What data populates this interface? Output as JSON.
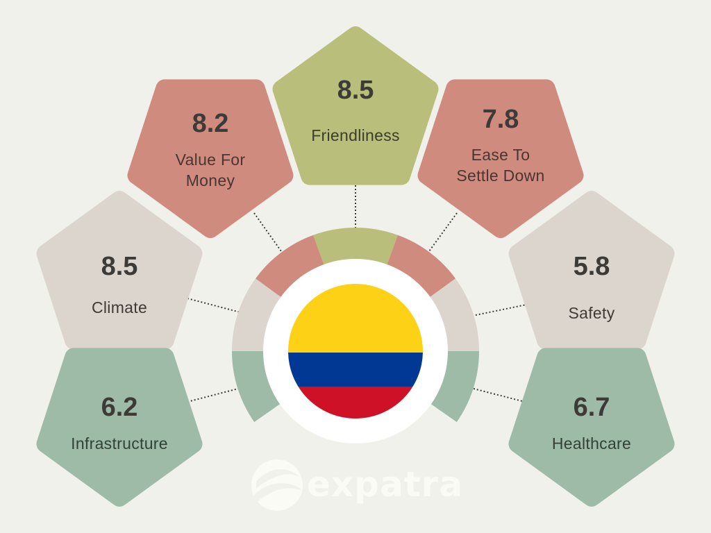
{
  "infographic": {
    "country_flag": "Colombia",
    "flag_colors": {
      "yellow": "#fcd116",
      "blue": "#003893",
      "red": "#ce1126"
    },
    "brand": {
      "name": "expatra",
      "icon": "expatra-swoosh-logo"
    },
    "palette": {
      "background": "#f1f1eb",
      "red": "#d08b7f",
      "olive": "#b9bf7b",
      "beige": "#dbd5cd",
      "green": "#9dbba6",
      "text": "#3d3b38"
    }
  },
  "categories": [
    {
      "id": "climate",
      "score": "8.5",
      "label_lines": [
        "Climate"
      ],
      "color": "beige"
    },
    {
      "id": "value_for_money",
      "score": "8.2",
      "label_lines": [
        "Value For",
        "Money"
      ],
      "color": "red"
    },
    {
      "id": "friendliness",
      "score": "8.5",
      "label_lines": [
        "Friendliness"
      ],
      "color": "olive"
    },
    {
      "id": "ease_to_settle_down",
      "score": "7.8",
      "label_lines": [
        "Ease To",
        "Settle Down"
      ],
      "color": "red"
    },
    {
      "id": "safety",
      "score": "5.8",
      "label_lines": [
        "Safety"
      ],
      "color": "beige"
    },
    {
      "id": "infrastructure",
      "score": "6.2",
      "label_lines": [
        "Infrastructure"
      ],
      "color": "green"
    },
    {
      "id": "healthcare",
      "score": "6.7",
      "label_lines": [
        "Healthcare"
      ],
      "color": "green"
    }
  ],
  "chart_data": {
    "type": "table",
    "title": "Colombia expat ratings",
    "categories": [
      "Climate",
      "Value For Money",
      "Friendliness",
      "Ease To Settle Down",
      "Safety",
      "Infrastructure",
      "Healthcare"
    ],
    "values": [
      8.5,
      8.2,
      8.5,
      7.8,
      5.8,
      6.2,
      6.7
    ],
    "ylim": [
      0,
      10
    ]
  }
}
